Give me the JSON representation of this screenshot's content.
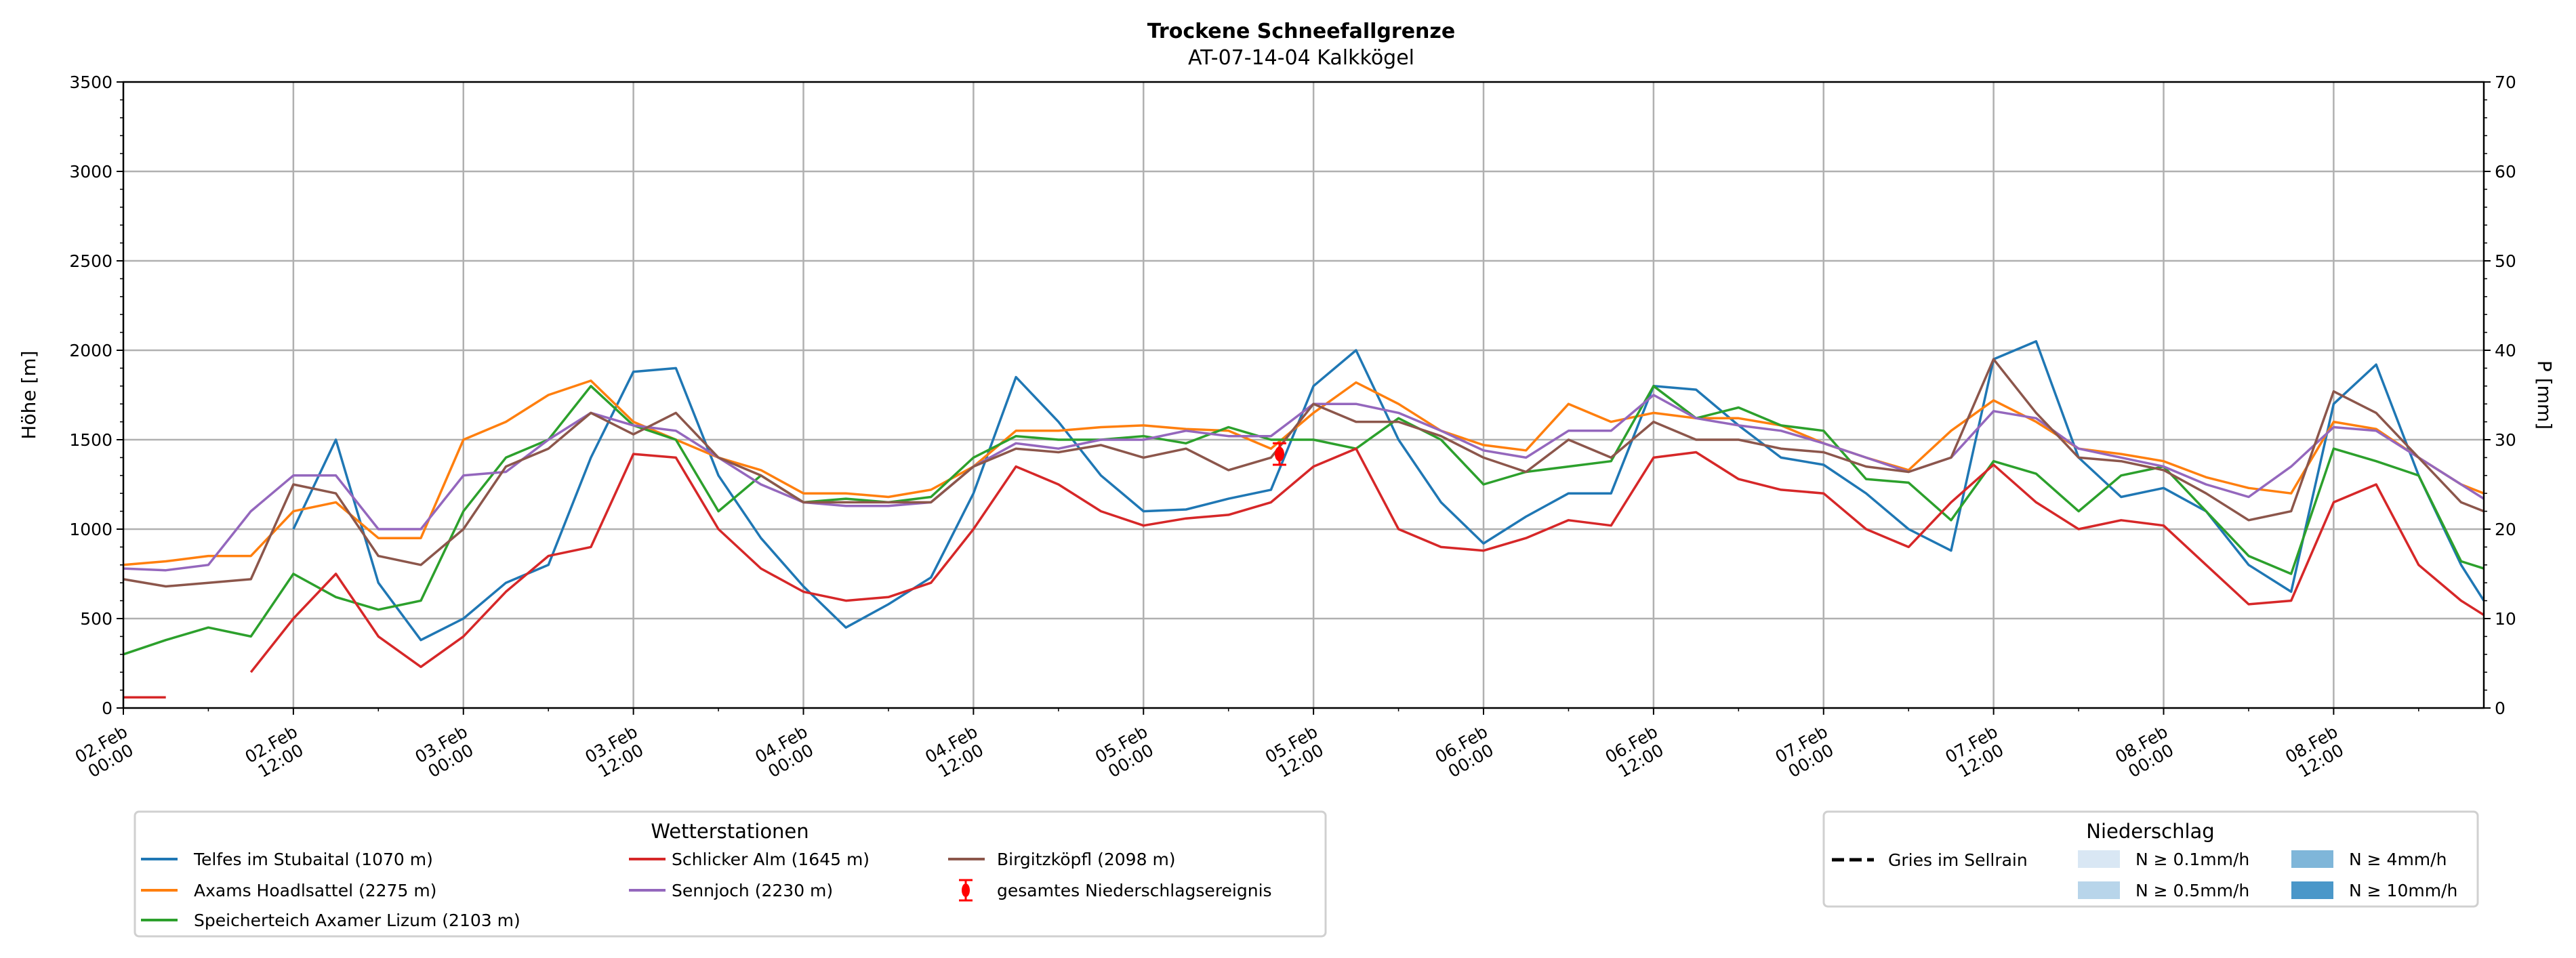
{
  "chart_data": {
    "type": "line",
    "title": "Trockene Schneefallgrenze",
    "subtitle": "AT-07-14-04 Kalkkögel",
    "xlabel": "",
    "ylabel": "Höhe [m]",
    "ylabel_right": "P [mm]",
    "ylim": [
      0,
      3500
    ],
    "ylim_right": [
      0,
      70
    ],
    "yticks": [
      0,
      500,
      1000,
      1500,
      2000,
      2500,
      3000,
      3500
    ],
    "yticks_right": [
      0,
      10,
      20,
      30,
      40,
      50,
      60,
      70
    ],
    "xlim_hours": [
      0,
      166.6
    ],
    "grid": true,
    "xtick_labels": [
      [
        "02.Feb",
        "00:00"
      ],
      [
        "02.Feb",
        "12:00"
      ],
      [
        "03.Feb",
        "00:00"
      ],
      [
        "03.Feb",
        "12:00"
      ],
      [
        "04.Feb",
        "00:00"
      ],
      [
        "04.Feb",
        "12:00"
      ],
      [
        "05.Feb",
        "00:00"
      ],
      [
        "05.Feb",
        "12:00"
      ],
      [
        "06.Feb",
        "00:00"
      ],
      [
        "06.Feb",
        "12:00"
      ],
      [
        "07.Feb",
        "00:00"
      ],
      [
        "07.Feb",
        "12:00"
      ],
      [
        "08.Feb",
        "00:00"
      ],
      [
        "08.Feb",
        "12:00"
      ]
    ],
    "x_hours": [
      0,
      3,
      6,
      9,
      12,
      15,
      18,
      21,
      24,
      27,
      30,
      33,
      36,
      39,
      42,
      45,
      48,
      51,
      54,
      57,
      60,
      63,
      66,
      69,
      72,
      75,
      78,
      81,
      84,
      87,
      90,
      93,
      96,
      99,
      102,
      105,
      108,
      111,
      114,
      117,
      120,
      123,
      126,
      129,
      132,
      135,
      138,
      141,
      144,
      147,
      150,
      153,
      156,
      159,
      162,
      165,
      166.6
    ],
    "series": [
      {
        "name": "Telfes im Stubaital (1070 m)",
        "color": "#1f77b4",
        "values": [
          null,
          null,
          null,
          null,
          1000,
          1500,
          700,
          380,
          500,
          700,
          800,
          1400,
          1880,
          1900,
          1300,
          950,
          680,
          450,
          580,
          730,
          1200,
          1850,
          1600,
          1300,
          1100,
          1110,
          1170,
          1220,
          1800,
          2000,
          1500,
          1150,
          920,
          1070,
          1200,
          1200,
          1800,
          1780,
          1580,
          1400,
          1360,
          1200,
          1000,
          880,
          1950,
          2050,
          1400,
          1180,
          1230,
          1100,
          800,
          650,
          1700,
          1920,
          1300,
          800,
          600
        ]
      },
      {
        "name": "Axams Hoadlsattel (2275 m)",
        "color": "#ff7f0e",
        "values": [
          800,
          820,
          850,
          850,
          1100,
          1150,
          950,
          950,
          1500,
          1600,
          1750,
          1830,
          1600,
          1500,
          1400,
          1330,
          1200,
          1200,
          1180,
          1220,
          1350,
          1550,
          1550,
          1570,
          1580,
          1560,
          1550,
          1450,
          1650,
          1820,
          1700,
          1550,
          1470,
          1440,
          1700,
          1600,
          1650,
          1620,
          1620,
          1580,
          1480,
          1400,
          1330,
          1550,
          1720,
          1600,
          1450,
          1420,
          1380,
          1290,
          1230,
          1200,
          1600,
          1560,
          1400,
          1250,
          1200
        ]
      },
      {
        "name": "Speicherteich Axamer Lizum (2103 m)",
        "color": "#2ca02c",
        "values": [
          300,
          380,
          450,
          400,
          750,
          620,
          550,
          600,
          1100,
          1400,
          1500,
          1800,
          1580,
          1500,
          1100,
          1300,
          1150,
          1170,
          1150,
          1180,
          1400,
          1520,
          1500,
          1500,
          1520,
          1480,
          1570,
          1500,
          1500,
          1450,
          1620,
          1500,
          1250,
          1320,
          1350,
          1380,
          1800,
          1620,
          1680,
          1580,
          1550,
          1280,
          1260,
          1050,
          1380,
          1310,
          1100,
          1300,
          1350,
          1100,
          850,
          750,
          1450,
          1380,
          1300,
          820,
          780
        ]
      },
      {
        "name": "Schlicker Alm (1645 m)",
        "color": "#d62728",
        "values": [
          60,
          60,
          null,
          200,
          500,
          750,
          400,
          230,
          400,
          650,
          850,
          900,
          1420,
          1400,
          1000,
          780,
          650,
          600,
          620,
          700,
          1000,
          1350,
          1250,
          1100,
          1020,
          1060,
          1080,
          1150,
          1350,
          1450,
          1000,
          900,
          880,
          950,
          1050,
          1020,
          1400,
          1430,
          1280,
          1220,
          1200,
          1000,
          900,
          1150,
          1360,
          1150,
          1000,
          1050,
          1020,
          800,
          580,
          600,
          1150,
          1250,
          800,
          600,
          520
        ]
      },
      {
        "name": "Sennjoch (2230 m)",
        "color": "#9467bd",
        "values": [
          780,
          770,
          800,
          1100,
          1300,
          1300,
          1000,
          1000,
          1300,
          1320,
          1500,
          1650,
          1580,
          1550,
          1400,
          1250,
          1150,
          1130,
          1130,
          1150,
          1350,
          1480,
          1450,
          1500,
          1500,
          1550,
          1520,
          1520,
          1700,
          1700,
          1650,
          1550,
          1440,
          1400,
          1550,
          1550,
          1750,
          1620,
          1580,
          1550,
          1480,
          1400,
          1320,
          1400,
          1660,
          1620,
          1450,
          1400,
          1350,
          1250,
          1180,
          1350,
          1570,
          1550,
          1400,
          1250,
          1170
        ]
      },
      {
        "name": "Birgitzköpfl (2098 m)",
        "color": "#8c564b",
        "values": [
          720,
          680,
          700,
          720,
          1250,
          1200,
          850,
          800,
          1000,
          1350,
          1450,
          1650,
          1530,
          1650,
          1400,
          1300,
          1150,
          1150,
          1150,
          1150,
          1350,
          1450,
          1430,
          1470,
          1400,
          1450,
          1330,
          1400,
          1700,
          1600,
          1600,
          1520,
          1400,
          1320,
          1500,
          1400,
          1600,
          1500,
          1500,
          1450,
          1430,
          1350,
          1320,
          1400,
          1950,
          1650,
          1400,
          1380,
          1330,
          1200,
          1050,
          1100,
          1770,
          1650,
          1400,
          1150,
          1100
        ]
      }
    ],
    "event": {
      "name": "gesamtes Niederschlagsereignis",
      "color": "#ff0000",
      "x_hour": 81.6,
      "value": 1420,
      "err": 60
    },
    "legend_stations": {
      "title": "Wetterstationen",
      "placement": "bottom-left"
    },
    "legend_precip": {
      "title": "Niederschlag",
      "placement": "bottom-right",
      "line_label": "Gries im Sellrain",
      "patches": [
        {
          "label": "N ≥ 0.1mm/h",
          "color": "#d9e7f4"
        },
        {
          "label": "N ≥ 0.5mm/h",
          "color": "#b8d5ea"
        },
        {
          "label": "N ≥ 4mm/h",
          "color": "#7fb6d9"
        },
        {
          "label": "N ≥ 10mm/h",
          "color": "#4a97c9"
        }
      ]
    }
  }
}
